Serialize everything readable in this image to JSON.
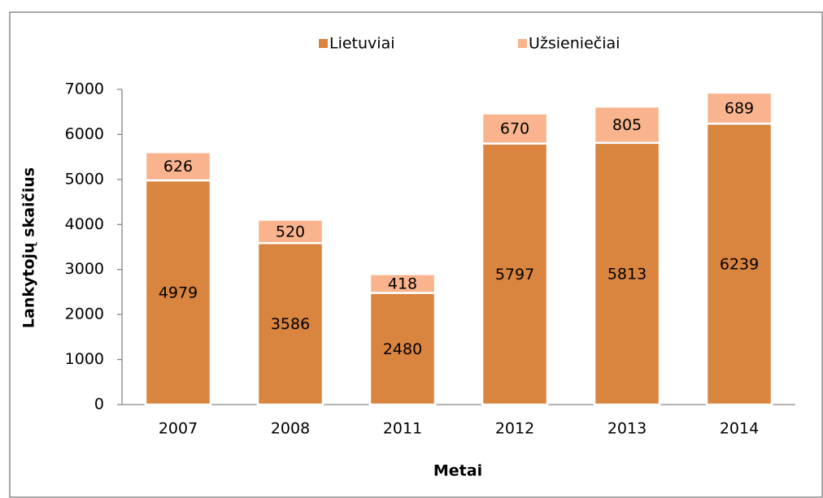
{
  "chart_data": {
    "type": "stacked_bar",
    "x_label": "Metai",
    "y_label": "Lankytojų skaičius",
    "categories": [
      "2007",
      "2008",
      "2011",
      "2012",
      "2013",
      "2014"
    ],
    "series": [
      {
        "name": "Lietuviai",
        "color": "#d9843f",
        "values": [
          4979,
          3586,
          2480,
          5797,
          5813,
          6239
        ]
      },
      {
        "name": "Užsieniečiai",
        "color": "#f9b48e",
        "values": [
          626,
          520,
          418,
          670,
          805,
          689
        ]
      }
    ],
    "ylim": [
      0,
      7000
    ],
    "yticks": [
      0,
      1000,
      2000,
      3000,
      4000,
      5000,
      6000,
      7000
    ],
    "legend": "top",
    "grid": false
  }
}
